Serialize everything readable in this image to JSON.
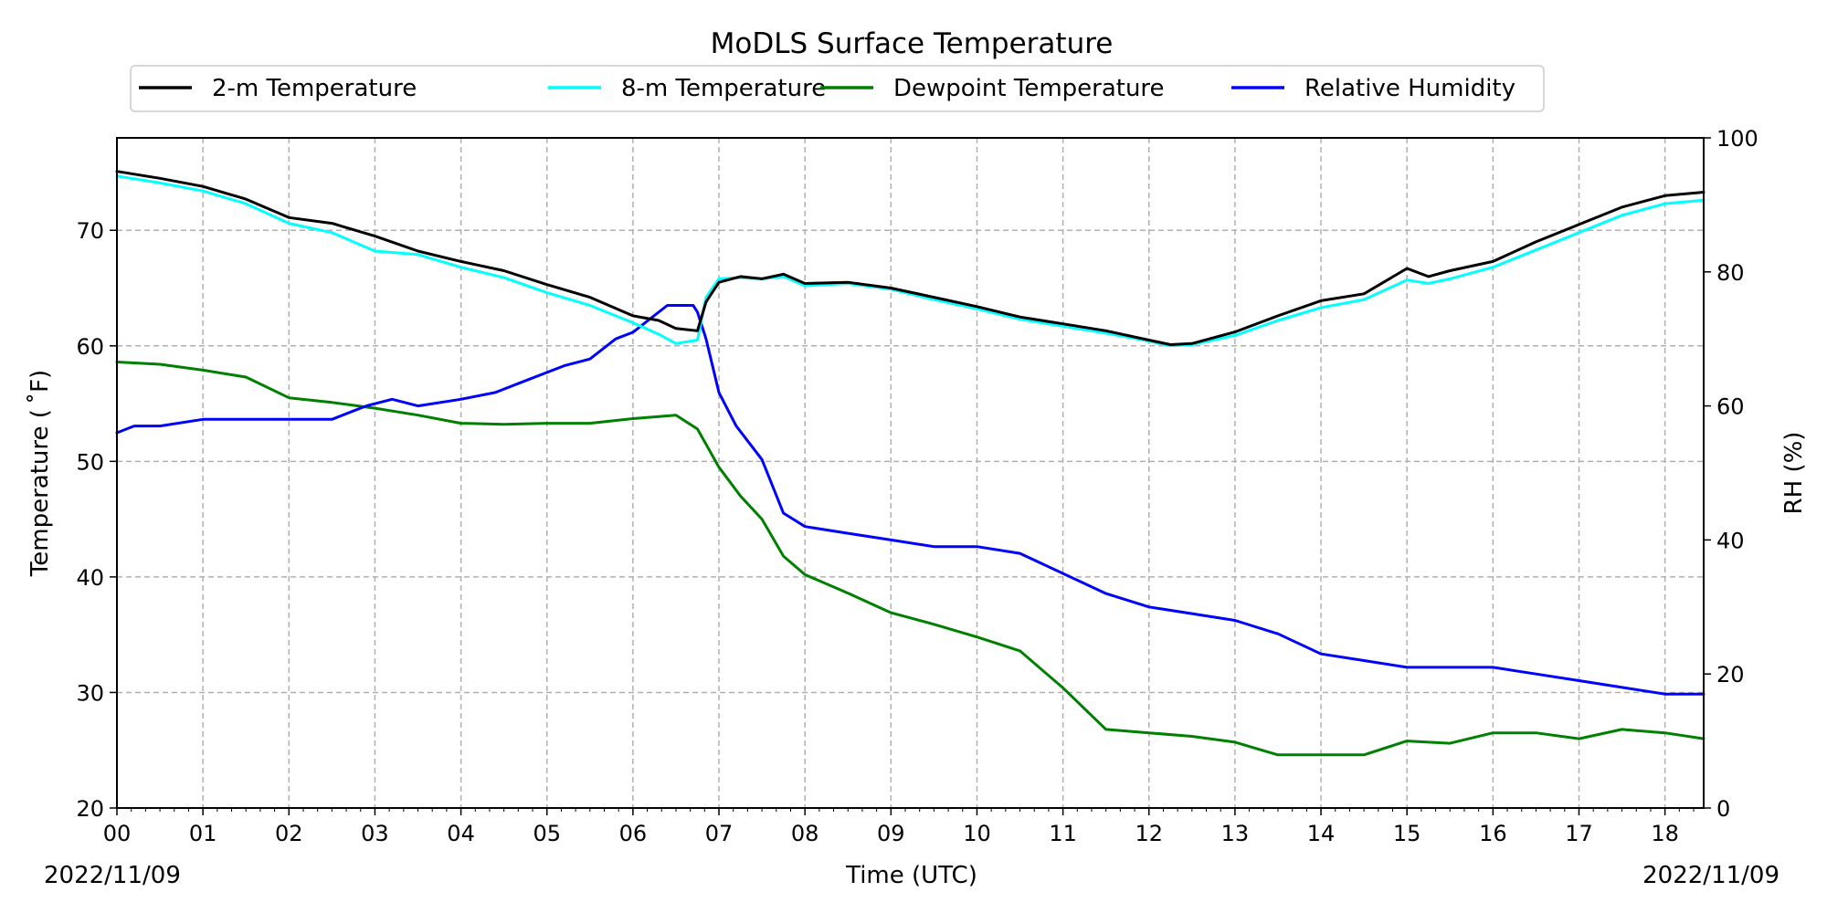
{
  "chart_data": {
    "type": "line",
    "title": "MoDLS Surface Temperature",
    "xlabel": "Time (UTC)",
    "ylabel_left": "Temperature ($^\\circ$F)",
    "ylabel_left_display": "Temperature ( ˚F)",
    "ylabel_right": "RH (%)",
    "date_left": "2022/11/09",
    "date_right": "2022/11/09",
    "x_unit": "hours UTC",
    "xlim": [
      0,
      18.45
    ],
    "x_tick_labels": [
      "00",
      "01",
      "02",
      "03",
      "04",
      "05",
      "06",
      "07",
      "08",
      "09",
      "10",
      "11",
      "12",
      "13",
      "14",
      "15",
      "16",
      "17",
      "18"
    ],
    "ylim_left": [
      20,
      78
    ],
    "y_left_ticks": [
      20,
      30,
      40,
      50,
      60,
      70
    ],
    "ylim_right": [
      0,
      100
    ],
    "y_right_ticks": [
      0,
      20,
      40,
      60,
      80,
      100
    ],
    "grid": true,
    "legend_placement": "top-center, above plot, 4 columns",
    "series": [
      {
        "name": "2-m Temperature",
        "color": "#000000",
        "axis": "left",
        "x": [
          0,
          0.5,
          1,
          1.5,
          2,
          2.5,
          3,
          3.5,
          4,
          4.5,
          5,
          5.5,
          6,
          6.3,
          6.5,
          6.75,
          6.85,
          7,
          7.25,
          7.5,
          7.75,
          8,
          8.5,
          9,
          9.5,
          10,
          10.5,
          11,
          11.5,
          12,
          12.25,
          12.5,
          13,
          13.5,
          14,
          14.5,
          15,
          15.25,
          15.5,
          16,
          16.5,
          17,
          17.5,
          18,
          18.45
        ],
        "values": [
          75.1,
          74.5,
          73.8,
          72.7,
          71.1,
          70.6,
          69.5,
          68.2,
          67.3,
          66.5,
          65.3,
          64.2,
          62.6,
          62.2,
          61.5,
          61.3,
          63.8,
          65.5,
          66.0,
          65.8,
          66.2,
          65.4,
          65.5,
          65.0,
          64.2,
          63.4,
          62.5,
          61.9,
          61.3,
          60.5,
          60.1,
          60.2,
          61.2,
          62.6,
          63.9,
          64.5,
          66.7,
          66.0,
          66.5,
          67.3,
          69.0,
          70.5,
          72.0,
          73.0,
          73.3
        ]
      },
      {
        "name": "8-m Temperature",
        "color": "#00ffff",
        "axis": "left",
        "x": [
          0,
          0.5,
          1,
          1.5,
          2,
          2.5,
          3,
          3.5,
          4,
          4.5,
          5,
          5.5,
          6,
          6.3,
          6.5,
          6.75,
          6.85,
          7,
          7.25,
          7.5,
          7.75,
          8,
          8.5,
          9,
          9.5,
          10,
          10.5,
          11,
          11.5,
          12,
          12.25,
          12.5,
          13,
          13.5,
          14,
          14.5,
          15,
          15.25,
          15.5,
          16,
          16.5,
          17,
          17.5,
          18,
          18.45
        ],
        "values": [
          74.7,
          74.1,
          73.4,
          72.3,
          70.6,
          69.8,
          68.2,
          67.9,
          66.8,
          65.9,
          64.6,
          63.5,
          62.0,
          61.0,
          60.2,
          60.5,
          64.2,
          65.8,
          65.9,
          65.8,
          66.0,
          65.2,
          65.4,
          64.9,
          64.0,
          63.2,
          62.3,
          61.7,
          61.1,
          60.4,
          60.0,
          60.1,
          60.9,
          62.2,
          63.3,
          64.0,
          65.7,
          65.4,
          65.8,
          66.8,
          68.3,
          69.8,
          71.3,
          72.3,
          72.6
        ]
      },
      {
        "name": "Dewpoint Temperature",
        "color": "#008000",
        "axis": "left",
        "x": [
          0,
          0.5,
          1,
          1.5,
          2,
          2.5,
          3,
          3.5,
          4,
          4.5,
          5,
          5.5,
          6,
          6.5,
          6.75,
          7,
          7.25,
          7.5,
          7.75,
          8,
          8.5,
          9,
          9.5,
          10,
          10.5,
          11,
          11.5,
          12,
          12.5,
          13,
          13.5,
          14,
          14.5,
          15,
          15.5,
          16,
          16.5,
          17,
          17.5,
          18,
          18.45
        ],
        "values": [
          58.6,
          58.4,
          57.9,
          57.3,
          55.5,
          55.1,
          54.6,
          54.0,
          53.3,
          53.2,
          53.3,
          53.3,
          53.7,
          54.0,
          52.8,
          49.5,
          47.0,
          45.0,
          41.8,
          40.2,
          38.6,
          36.9,
          35.9,
          34.8,
          33.6,
          30.4,
          26.8,
          26.5,
          26.2,
          25.7,
          24.6,
          24.6,
          24.6,
          25.8,
          25.6,
          26.5,
          26.5,
          26.0,
          26.8,
          26.5,
          26.0
        ]
      },
      {
        "name": "Relative Humidity",
        "color": "#0000ff",
        "axis": "right",
        "x": [
          0,
          0.2,
          0.5,
          1,
          1.5,
          2,
          2.5,
          2.9,
          3.2,
          3.5,
          4,
          4.4,
          4.8,
          5.2,
          5.5,
          5.8,
          6.0,
          6.2,
          6.4,
          6.7,
          6.75,
          6.85,
          7,
          7.2,
          7.5,
          7.75,
          8,
          8.5,
          9,
          9.5,
          10,
          10.5,
          11,
          11.5,
          12,
          12.5,
          13,
          13.5,
          14,
          14.5,
          15,
          15.5,
          16,
          16.5,
          17,
          17.5,
          18,
          18.45
        ],
        "values": [
          56,
          57,
          57,
          58,
          58,
          58,
          58,
          60,
          61,
          60,
          61,
          62,
          64,
          66,
          67,
          70,
          71,
          73,
          75,
          75,
          74,
          70,
          62,
          57,
          52,
          44,
          42,
          41,
          40,
          39,
          39,
          38,
          35,
          32,
          30,
          29,
          28,
          26,
          23,
          22,
          21,
          21,
          21,
          20,
          19,
          18,
          17,
          17
        ]
      }
    ]
  }
}
